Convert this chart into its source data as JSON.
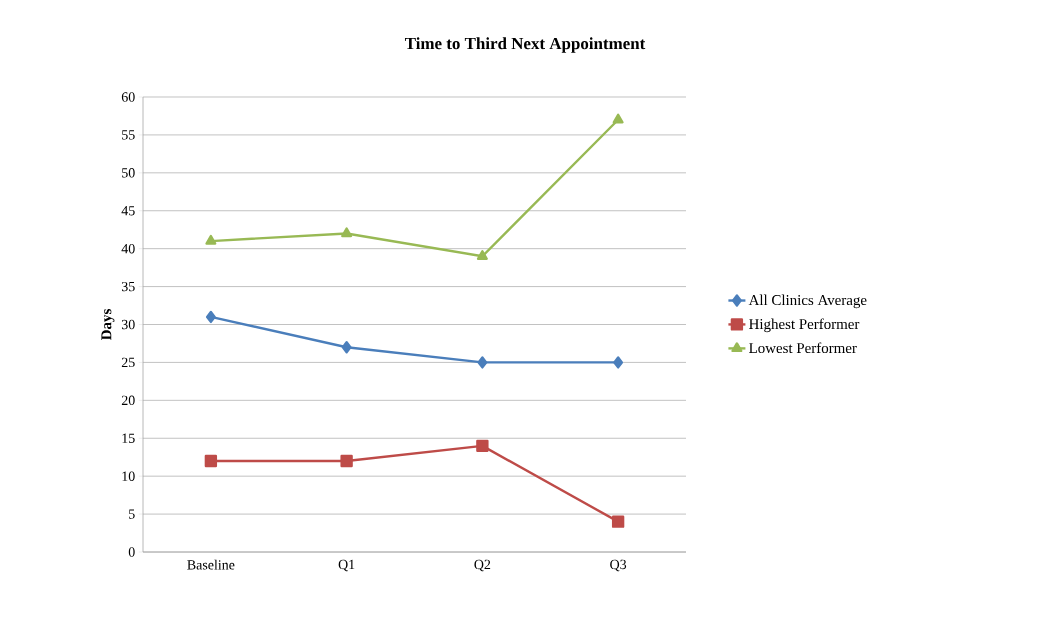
{
  "chart_data": {
    "type": "line",
    "title": "Time to Third Next Appointment",
    "ylabel": "Days",
    "categories": [
      "Baseline",
      "Q1",
      "Q2",
      "Q3"
    ],
    "series": [
      {
        "name": "All Clinics Average",
        "color": "#4a7ebb",
        "marker": "diamond",
        "values": [
          31,
          27,
          25,
          25
        ]
      },
      {
        "name": "Highest Performer",
        "color": "#be4b48",
        "marker": "square",
        "values": [
          12,
          12,
          14,
          4
        ]
      },
      {
        "name": "Lowest Performer",
        "color": "#98b954",
        "marker": "triangle",
        "values": [
          41,
          42,
          39,
          57
        ]
      }
    ],
    "ylim": [
      0,
      60
    ],
    "yticks": [
      0,
      5,
      10,
      15,
      20,
      25,
      30,
      35,
      40,
      45,
      50,
      55,
      60
    ],
    "grid": "y",
    "legend": "right",
    "line_style": "solid"
  }
}
